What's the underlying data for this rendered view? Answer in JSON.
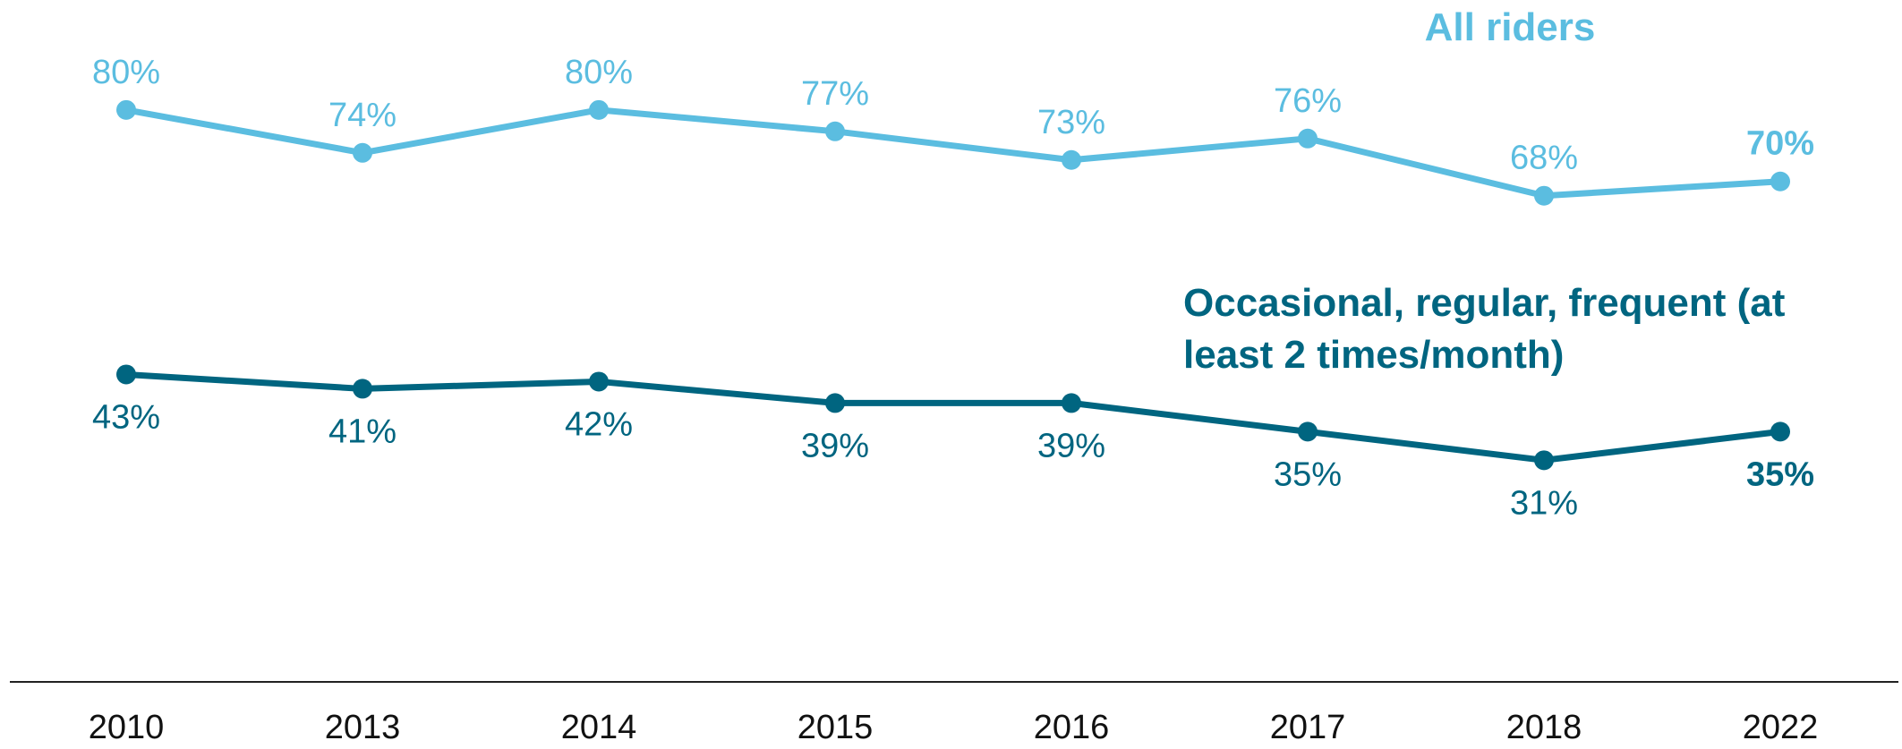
{
  "chart_data": {
    "type": "line",
    "categories": [
      "2010",
      "2013",
      "2014",
      "2015",
      "2016",
      "2017",
      "2018",
      "2022"
    ],
    "ylim": [
      0,
      95
    ],
    "series": [
      {
        "name": "All riders",
        "color": "#5bbde0",
        "values": [
          80,
          74,
          80,
          77,
          73,
          76,
          68,
          70
        ],
        "value_labels": [
          "80%",
          "74%",
          "80%",
          "77%",
          "73%",
          "76%",
          "68%",
          "70%"
        ]
      },
      {
        "name": "Occasional, regular, frequent (at least 2 times/month)",
        "color": "#006580",
        "values": [
          43,
          41,
          42,
          39,
          39,
          35,
          31,
          35
        ],
        "value_labels": [
          "43%",
          "41%",
          "42%",
          "39%",
          "39%",
          "35%",
          "31%",
          "35%"
        ]
      }
    ]
  }
}
